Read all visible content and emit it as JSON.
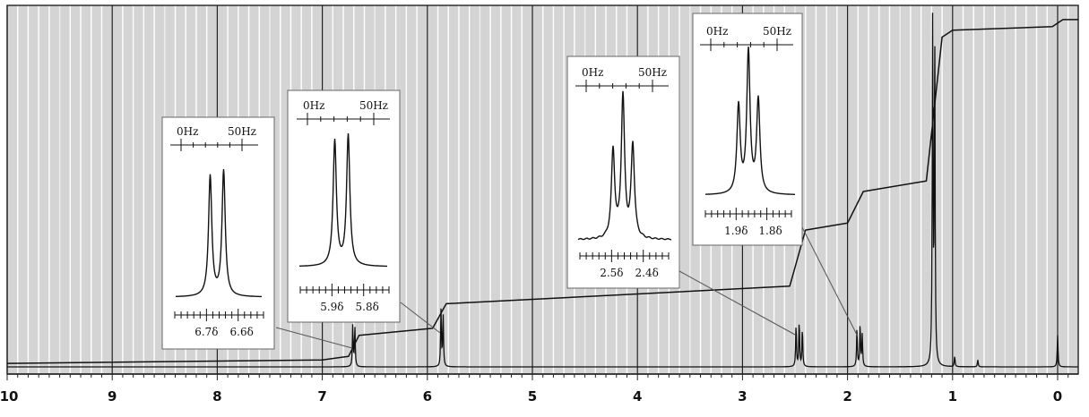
{
  "chart_data": {
    "type": "line",
    "title": "",
    "xlabel": "",
    "ylabel": "",
    "xlim": [
      10,
      0
    ],
    "x_ticks": [
      "10",
      "9",
      "8",
      "7",
      "6",
      "5",
      "4",
      "3",
      "2",
      "1",
      "0"
    ],
    "grid": true,
    "series": [
      {
        "peaks": [
          {
            "ppm": 6.71,
            "height": 0.12
          },
          {
            "ppm": 6.69,
            "height": 0.11
          },
          {
            "ppm": 5.87,
            "height": 0.16
          },
          {
            "ppm": 5.85,
            "height": 0.15
          },
          {
            "ppm": 2.49,
            "height": 0.12
          },
          {
            "ppm": 2.46,
            "height": 0.13
          },
          {
            "ppm": 2.43,
            "height": 0.11
          },
          {
            "ppm": 1.91,
            "height": 0.11
          },
          {
            "ppm": 1.88,
            "height": 0.12
          },
          {
            "ppm": 1.86,
            "height": 0.09
          },
          {
            "ppm": 1.19,
            "height": 0.97
          },
          {
            "ppm": 1.17,
            "height": 0.92
          },
          {
            "ppm": 0.98,
            "height": 0.03
          },
          {
            "ppm": 0.76,
            "height": 0.02
          },
          {
            "ppm": 0.0,
            "height": 0.09
          }
        ]
      },
      {
        "points": [
          [
            10.0,
            0.01
          ],
          [
            7.0,
            0.02
          ],
          [
            6.75,
            0.03
          ],
          [
            6.65,
            0.09
          ],
          [
            5.95,
            0.11
          ],
          [
            5.82,
            0.18
          ],
          [
            2.55,
            0.23
          ],
          [
            2.4,
            0.39
          ],
          [
            2.0,
            0.41
          ],
          [
            1.85,
            0.5
          ],
          [
            1.25,
            0.53
          ],
          [
            1.1,
            0.94
          ],
          [
            1.0,
            0.96
          ],
          [
            0.05,
            0.97
          ],
          [
            -0.05,
            0.99
          ],
          [
            -0.2,
            0.99
          ]
        ]
      }
    ],
    "insets": [
      {
        "scale_left": "0Hz",
        "scale_right": "50Hz",
        "delta_left": "6.7δ",
        "delta_right": "6.6δ",
        "peak_count": 2,
        "points_to_ppm": 6.7
      },
      {
        "scale_left": "0Hz",
        "scale_right": "50Hz",
        "delta_left": "5.9δ",
        "delta_right": "5.8δ",
        "peak_count": 2,
        "points_to_ppm": 5.86
      },
      {
        "scale_left": "0Hz",
        "scale_right": "50Hz",
        "delta_left": "2.5δ",
        "delta_right": "2.4δ",
        "peak_count": 3,
        "points_to_ppm": 2.46
      },
      {
        "scale_left": "0Hz",
        "scale_right": "50Hz",
        "delta_left": "1.9δ",
        "delta_right": "1.8δ",
        "peak_count": 3,
        "points_to_ppm": 1.88
      }
    ]
  }
}
